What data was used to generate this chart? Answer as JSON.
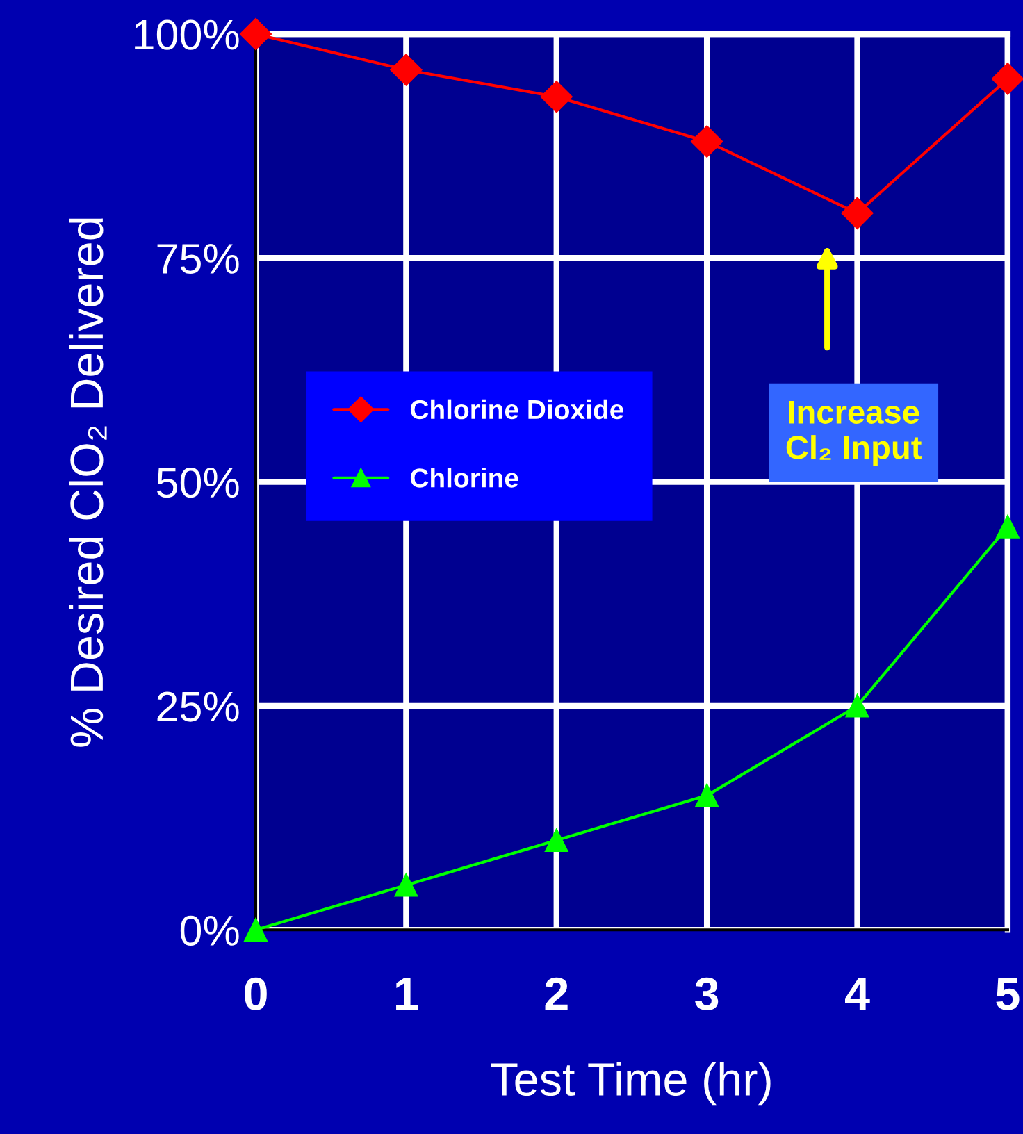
{
  "chart_data": {
    "type": "line",
    "xlabel": "Test Time (hr)",
    "ylabel": "% Desired ClO₂ Delivered",
    "x": [
      0,
      1,
      2,
      3,
      4,
      5
    ],
    "series": [
      {
        "name": "Chlorine Dioxide",
        "color": "#ff0000",
        "marker": "diamond",
        "values": [
          100,
          96,
          93,
          88,
          80,
          95
        ]
      },
      {
        "name": "Chlorine",
        "color": "#00ff00",
        "marker": "triangle",
        "values": [
          0,
          5,
          10,
          15,
          25,
          45
        ]
      }
    ],
    "xlim": [
      0,
      5
    ],
    "xticks": [
      0,
      1,
      2,
      3,
      4,
      5
    ],
    "ylim": [
      0,
      100
    ],
    "yticks": [
      {
        "value": 0,
        "label": "0%"
      },
      {
        "value": 25,
        "label": "25%"
      },
      {
        "value": 50,
        "label": "50%"
      },
      {
        "value": 75,
        "label": "75%"
      },
      {
        "value": 100,
        "label": "100%"
      }
    ],
    "grid": true,
    "legend": "left",
    "line_style": "solid",
    "annotations": [
      "Increase\nCl₂ Input"
    ]
  }
}
